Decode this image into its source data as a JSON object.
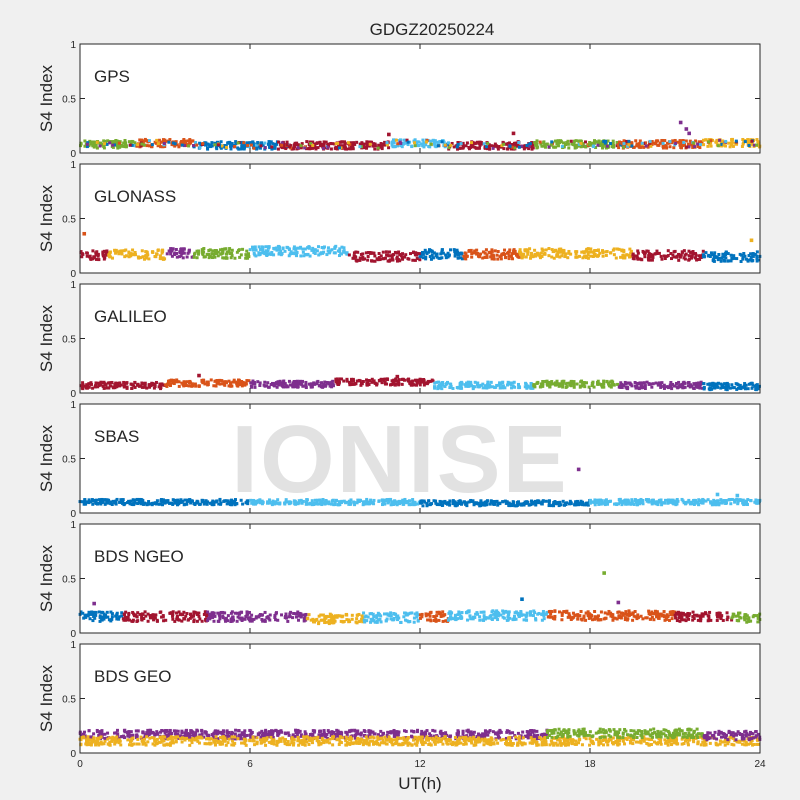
{
  "figure_title": "GDGZ20250224",
  "watermark": "IONISE",
  "colors": {
    "background": "#f0f0f0",
    "axes_bg": "#ffffff",
    "blue": "#0072bd",
    "orange": "#d95319",
    "yellow": "#edb120",
    "purple": "#7e2f8e",
    "green": "#77ac30",
    "cyan": "#4dbeee",
    "darkred": "#a2142f"
  },
  "chart_data": [
    {
      "type": "scatter",
      "label": "GPS",
      "ylabel": "S4 Index",
      "xlim": [
        0,
        24
      ],
      "ylim": [
        0,
        1
      ],
      "yticks": [
        "0",
        "0.5",
        "1"
      ],
      "baseline": 0.07,
      "spread": 0.035,
      "colors": [
        "#0072bd",
        "#d95319",
        "#edb120",
        "#7e2f8e",
        "#77ac30",
        "#4dbeee",
        "#a2142f"
      ],
      "segments": [
        {
          "x0": 0,
          "x1": 2,
          "base": 0.08,
          "color": "#77ac30"
        },
        {
          "x0": 2,
          "x1": 4,
          "base": 0.09,
          "color": "#d95319"
        },
        {
          "x0": 4,
          "x1": 7,
          "base": 0.07,
          "color": "#0072bd"
        },
        {
          "x0": 7,
          "x1": 11,
          "base": 0.07,
          "color": "#a2142f"
        },
        {
          "x0": 11,
          "x1": 13,
          "base": 0.09,
          "color": "#4dbeee"
        },
        {
          "x0": 13,
          "x1": 16,
          "base": 0.07,
          "color": "#a2142f"
        },
        {
          "x0": 16,
          "x1": 19,
          "base": 0.08,
          "color": "#77ac30"
        },
        {
          "x0": 19,
          "x1": 22,
          "base": 0.08,
          "color": "#d95319"
        },
        {
          "x0": 22,
          "x1": 24,
          "base": 0.09,
          "color": "#edb120"
        }
      ],
      "outliers": [
        {
          "x": 21.2,
          "y": 0.28,
          "color": "#7e2f8e"
        },
        {
          "x": 21.4,
          "y": 0.22,
          "color": "#7e2f8e"
        },
        {
          "x": 21.5,
          "y": 0.18,
          "color": "#7e2f8e"
        },
        {
          "x": 15.3,
          "y": 0.18,
          "color": "#a2142f"
        },
        {
          "x": 10.9,
          "y": 0.17,
          "color": "#a2142f"
        }
      ]
    },
    {
      "type": "scatter",
      "label": "GLONASS",
      "ylabel": "S4 Index",
      "xlim": [
        0,
        24
      ],
      "ylim": [
        0,
        1
      ],
      "yticks": [
        "0",
        "0.5",
        "1"
      ],
      "baseline": 0.17,
      "spread": 0.045,
      "segments": [
        {
          "x0": 0,
          "x1": 1,
          "base": 0.16,
          "color": "#a2142f"
        },
        {
          "x0": 1,
          "x1": 3,
          "base": 0.17,
          "color": "#edb120"
        },
        {
          "x0": 3,
          "x1": 4,
          "base": 0.18,
          "color": "#7e2f8e"
        },
        {
          "x0": 4,
          "x1": 6,
          "base": 0.18,
          "color": "#77ac30"
        },
        {
          "x0": 6,
          "x1": 9.5,
          "base": 0.2,
          "color": "#4dbeee"
        },
        {
          "x0": 9.5,
          "x1": 12,
          "base": 0.15,
          "color": "#a2142f"
        },
        {
          "x0": 12,
          "x1": 13.5,
          "base": 0.17,
          "color": "#0072bd"
        },
        {
          "x0": 13.5,
          "x1": 15.5,
          "base": 0.17,
          "color": "#d95319"
        },
        {
          "x0": 15.5,
          "x1": 19.5,
          "base": 0.18,
          "color": "#edb120"
        },
        {
          "x0": 19.5,
          "x1": 22,
          "base": 0.16,
          "color": "#a2142f"
        },
        {
          "x0": 22,
          "x1": 24,
          "base": 0.15,
          "color": "#0072bd"
        }
      ],
      "outliers": [
        {
          "x": 0.15,
          "y": 0.36,
          "color": "#d95319"
        },
        {
          "x": 23.7,
          "y": 0.3,
          "color": "#edb120"
        }
      ]
    },
    {
      "type": "scatter",
      "label": "GALILEO",
      "ylabel": "S4 Index",
      "xlim": [
        0,
        24
      ],
      "ylim": [
        0,
        1
      ],
      "yticks": [
        "0",
        "0.5",
        "1"
      ],
      "baseline": 0.08,
      "spread": 0.03,
      "segments": [
        {
          "x0": 0,
          "x1": 3,
          "base": 0.07,
          "color": "#a2142f"
        },
        {
          "x0": 3,
          "x1": 6,
          "base": 0.09,
          "color": "#d95319"
        },
        {
          "x0": 6,
          "x1": 9,
          "base": 0.08,
          "color": "#7e2f8e"
        },
        {
          "x0": 9,
          "x1": 12.5,
          "base": 0.1,
          "color": "#a2142f"
        },
        {
          "x0": 12.5,
          "x1": 16,
          "base": 0.07,
          "color": "#4dbeee"
        },
        {
          "x0": 16,
          "x1": 19,
          "base": 0.08,
          "color": "#77ac30"
        },
        {
          "x0": 19,
          "x1": 22,
          "base": 0.07,
          "color": "#7e2f8e"
        },
        {
          "x0": 22,
          "x1": 24,
          "base": 0.06,
          "color": "#0072bd"
        }
      ],
      "outliers": [
        {
          "x": 4.2,
          "y": 0.16,
          "color": "#a2142f"
        },
        {
          "x": 11.2,
          "y": 0.15,
          "color": "#a2142f"
        }
      ]
    },
    {
      "type": "scatter",
      "label": "SBAS",
      "ylabel": "S4 Index",
      "xlim": [
        0,
        24
      ],
      "ylim": [
        0,
        1
      ],
      "yticks": [
        "0",
        "0.5",
        "1"
      ],
      "baseline": 0.1,
      "spread": 0.025,
      "segments": [
        {
          "x0": 0,
          "x1": 6,
          "base": 0.1,
          "color": "#0072bd"
        },
        {
          "x0": 6,
          "x1": 12,
          "base": 0.1,
          "color": "#4dbeee"
        },
        {
          "x0": 12,
          "x1": 18,
          "base": 0.09,
          "color": "#0072bd"
        },
        {
          "x0": 18,
          "x1": 24,
          "base": 0.1,
          "color": "#4dbeee"
        }
      ],
      "outliers": [
        {
          "x": 17.6,
          "y": 0.4,
          "color": "#7e2f8e"
        },
        {
          "x": 22.5,
          "y": 0.17,
          "color": "#4dbeee"
        },
        {
          "x": 23.2,
          "y": 0.16,
          "color": "#4dbeee"
        }
      ]
    },
    {
      "type": "scatter",
      "label": "BDS NGEO",
      "ylabel": "S4 Index",
      "xlim": [
        0,
        24
      ],
      "ylim": [
        0,
        1
      ],
      "yticks": [
        "0",
        "0.5",
        "1"
      ],
      "baseline": 0.14,
      "spread": 0.045,
      "segments": [
        {
          "x0": 0,
          "x1": 1.5,
          "base": 0.15,
          "color": "#0072bd"
        },
        {
          "x0": 1.5,
          "x1": 4.5,
          "base": 0.15,
          "color": "#a2142f"
        },
        {
          "x0": 4.5,
          "x1": 8,
          "base": 0.15,
          "color": "#7e2f8e"
        },
        {
          "x0": 8,
          "x1": 10,
          "base": 0.13,
          "color": "#edb120"
        },
        {
          "x0": 10,
          "x1": 12,
          "base": 0.14,
          "color": "#4dbeee"
        },
        {
          "x0": 12,
          "x1": 13,
          "base": 0.15,
          "color": "#d95319"
        },
        {
          "x0": 13,
          "x1": 16.5,
          "base": 0.16,
          "color": "#4dbeee"
        },
        {
          "x0": 16.5,
          "x1": 21,
          "base": 0.16,
          "color": "#d95319"
        },
        {
          "x0": 21,
          "x1": 23,
          "base": 0.15,
          "color": "#a2142f"
        },
        {
          "x0": 23,
          "x1": 24,
          "base": 0.14,
          "color": "#77ac30"
        }
      ],
      "outliers": [
        {
          "x": 0.5,
          "y": 0.27,
          "color": "#7e2f8e"
        },
        {
          "x": 15.6,
          "y": 0.31,
          "color": "#0072bd"
        },
        {
          "x": 18.5,
          "y": 0.55,
          "color": "#77ac30"
        },
        {
          "x": 19.0,
          "y": 0.28,
          "color": "#7e2f8e"
        }
      ]
    },
    {
      "type": "scatter",
      "label": "BDS GEO",
      "ylabel": "S4 Index",
      "xlim": [
        0,
        24
      ],
      "ylim": [
        0,
        1
      ],
      "yticks": [
        "0",
        "0.5",
        "1"
      ],
      "baseline": 0.15,
      "spread": 0.04,
      "segments": [
        {
          "x0": 0,
          "x1": 16.5,
          "base": 0.17,
          "color": "#7e2f8e"
        },
        {
          "x0": 0,
          "x1": 24,
          "base": 0.11,
          "color": "#edb120"
        },
        {
          "x0": 16.5,
          "x1": 22,
          "base": 0.18,
          "color": "#77ac30"
        },
        {
          "x0": 22,
          "x1": 24,
          "base": 0.16,
          "color": "#7e2f8e"
        }
      ],
      "outliers": []
    }
  ],
  "xaxis": {
    "label": "UT(h)",
    "ticks": [
      0,
      6,
      12,
      18,
      24
    ]
  }
}
